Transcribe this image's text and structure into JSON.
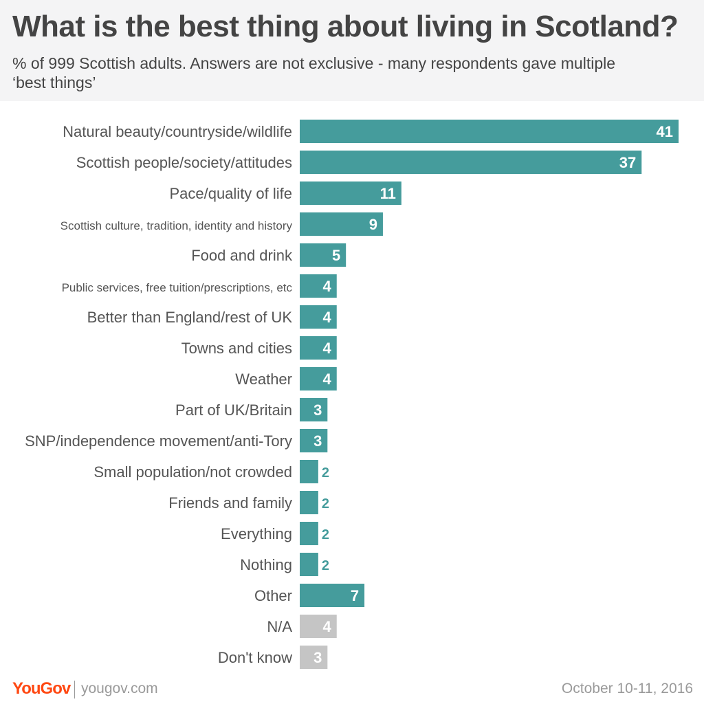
{
  "header": {
    "title": "What is the best thing about living in Scotland?",
    "subtitle": "% of 999 Scottish adults. Answers are not exclusive - many respondents gave multiple ‘best things’"
  },
  "chart_data": {
    "type": "bar",
    "orientation": "horizontal",
    "title": "What is the best thing about living in Scotland?",
    "xlabel": "",
    "ylabel": "",
    "xlim": [
      0,
      41
    ],
    "grid": false,
    "categories": [
      "Natural beauty/countryside/wildlife",
      "Scottish people/society/attitudes",
      "Pace/quality of life",
      "Scottish culture, tradition, identity and history",
      "Food and drink",
      "Public services, free tuition/prescriptions, etc",
      "Better than England/rest of UK",
      "Towns and cities",
      "Weather",
      "Part of UK/Britain",
      "SNP/independence movement/anti-Tory",
      "Small population/not crowded",
      "Friends and family",
      "Everything",
      "Nothing",
      "Other",
      "N/A",
      "Don't know"
    ],
    "values": [
      41,
      37,
      11,
      9,
      5,
      4,
      4,
      4,
      4,
      3,
      3,
      2,
      2,
      2,
      2,
      7,
      4,
      3
    ],
    "colors": {
      "primary": "#459c9c",
      "muted": "#c5c5c5",
      "muted_categories": [
        "N/A",
        "Don't know"
      ]
    }
  },
  "footer": {
    "brand": "YouGov",
    "url": "yougov.com",
    "date": "October 10-11, 2016"
  }
}
